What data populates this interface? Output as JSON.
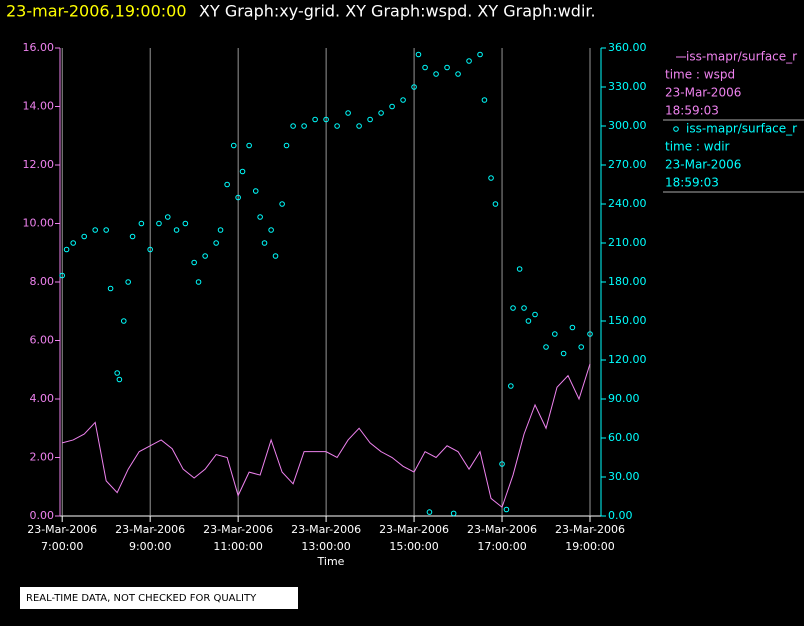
{
  "chart_data": {
    "type": "line",
    "title_time": "23-mar-2006,19:00:00",
    "title": "XY Graph:xy-grid.  XY Graph:wspd.  XY Graph:wdir.",
    "x_label": "Time",
    "xlim": [
      6.95,
      19.25
    ],
    "xticks": [
      {
        "value": 7,
        "label": "23-Mar-2006\n7:00:00"
      },
      {
        "value": 9,
        "label": "23-Mar-2006\n9:00:00"
      },
      {
        "value": 11,
        "label": "23-Mar-2006\n11:00:00"
      },
      {
        "value": 13,
        "label": "23-Mar-2006\n13:00:00"
      },
      {
        "value": 15,
        "label": "23-Mar-2006\n15:00:00"
      },
      {
        "value": 17,
        "label": "23-Mar-2006\n17:00:00"
      },
      {
        "value": 19,
        "label": "23-Mar-2006\n19:00:00"
      }
    ],
    "ylim": [
      0,
      16
    ],
    "yticks": [
      {
        "value": 0,
        "label": "0.00"
      },
      {
        "value": 2,
        "label": "2.00"
      },
      {
        "value": 4,
        "label": "4.00"
      },
      {
        "value": 6,
        "label": "6.00"
      },
      {
        "value": 8,
        "label": "8.00"
      },
      {
        "value": 10,
        "label": "10.00"
      },
      {
        "value": 12,
        "label": "12.00"
      },
      {
        "value": 14,
        "label": "14.00"
      },
      {
        "value": 16,
        "label": "16.00"
      }
    ],
    "y2lim": [
      0,
      360
    ],
    "y2ticks": [
      {
        "value": 0,
        "label": "0.00"
      },
      {
        "value": 30,
        "label": "30.00"
      },
      {
        "value": 60,
        "label": "60.00"
      },
      {
        "value": 90,
        "label": "90.00"
      },
      {
        "value": 120,
        "label": "120.00"
      },
      {
        "value": 150,
        "label": "150.00"
      },
      {
        "value": 180,
        "label": "180.00"
      },
      {
        "value": 210,
        "label": "210.00"
      },
      {
        "value": 240,
        "label": "240.00"
      },
      {
        "value": 270,
        "label": "270.00"
      },
      {
        "value": 300,
        "label": "300.00"
      },
      {
        "value": 330,
        "label": "330.00"
      },
      {
        "value": 360,
        "label": "360.00"
      }
    ],
    "grid": true,
    "series": [
      {
        "name": "iss-mapr/surface_r",
        "color": "#ee82ee",
        "type": "line",
        "axis": "y",
        "legend_details": [
          "time : wspd",
          "23-Mar-2006",
          "18:59:03"
        ],
        "x": [
          7,
          7.25,
          7.5,
          7.75,
          8,
          8.25,
          8.5,
          8.75,
          9,
          9.25,
          9.5,
          9.75,
          10,
          10.25,
          10.5,
          10.75,
          11,
          11.25,
          11.5,
          11.75,
          12,
          12.25,
          12.5,
          12.75,
          13,
          13.25,
          13.5,
          13.75,
          14,
          14.25,
          14.5,
          14.75,
          15,
          15.25,
          15.5,
          15.75,
          16,
          16.25,
          16.5,
          16.75,
          17,
          17.25,
          17.5,
          17.75,
          18,
          18.25,
          18.5,
          18.75,
          19
        ],
        "values": [
          2.5,
          2.6,
          2.8,
          3.2,
          1.2,
          0.8,
          1.6,
          2.2,
          2.4,
          2.6,
          2.3,
          1.6,
          1.3,
          1.6,
          2.1,
          2.0,
          0.7,
          1.5,
          1.4,
          2.6,
          1.5,
          1.1,
          2.2,
          2.2,
          2.2,
          2.0,
          2.6,
          3.0,
          2.5,
          2.2,
          2.0,
          1.7,
          1.5,
          2.2,
          2.0,
          2.4,
          2.2,
          1.6,
          2.2,
          0.6,
          0.3,
          1.4,
          2.8,
          3.8,
          3.0,
          4.4,
          4.8,
          4.0,
          5.2
        ]
      },
      {
        "name": "iss-mapr/surface_r",
        "color": "#00ffff",
        "type": "scatter",
        "axis": "y2",
        "legend_details": [
          "time : wdir",
          "23-Mar-2006",
          "18:59:03"
        ],
        "x": [
          7.0,
          7.1,
          7.25,
          7.5,
          7.75,
          8.0,
          8.1,
          8.25,
          8.3,
          8.4,
          8.5,
          8.6,
          8.8,
          9.0,
          9.2,
          9.4,
          9.6,
          9.8,
          10.0,
          10.1,
          10.25,
          10.5,
          10.6,
          10.75,
          10.9,
          11.0,
          11.1,
          11.25,
          11.4,
          11.5,
          11.6,
          11.75,
          11.85,
          12.0,
          12.1,
          12.25,
          12.5,
          12.75,
          13.0,
          13.25,
          13.5,
          13.75,
          14.0,
          14.25,
          14.5,
          14.75,
          15.0,
          15.1,
          15.25,
          15.35,
          15.5,
          15.75,
          15.9,
          16.0,
          16.25,
          16.5,
          16.6,
          16.75,
          16.85,
          17.0,
          17.1,
          17.2,
          17.25,
          17.4,
          17.5,
          17.6,
          17.75,
          18.0,
          18.2,
          18.4,
          18.6,
          18.8,
          19.0
        ],
        "values": [
          185,
          205,
          210,
          215,
          220,
          220,
          175,
          110,
          105,
          150,
          180,
          215,
          225,
          205,
          225,
          230,
          220,
          225,
          195,
          180,
          200,
          210,
          220,
          255,
          285,
          245,
          265,
          285,
          250,
          230,
          210,
          220,
          200,
          240,
          285,
          300,
          300,
          305,
          305,
          300,
          310,
          300,
          305,
          310,
          315,
          320,
          330,
          355,
          345,
          3,
          340,
          345,
          2,
          340,
          350,
          355,
          320,
          260,
          240,
          40,
          5,
          100,
          160,
          190,
          160,
          150,
          155,
          130,
          140,
          125,
          145,
          130,
          140
        ]
      }
    ],
    "footnote": "REAL-TIME DATA, NOT CHECKED FOR QUALITY"
  }
}
